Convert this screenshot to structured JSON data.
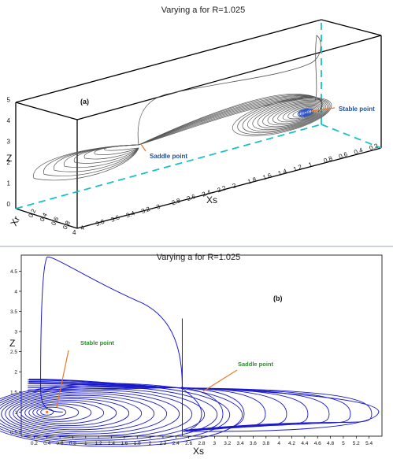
{
  "panel_a": {
    "title": "Varying a for R=1.025",
    "label": "(a)",
    "xlabel": "Xs",
    "ylabel": "Z",
    "depth_label": "Xr",
    "annotations": {
      "saddle": "Saddle point",
      "stable": "Stable point"
    }
  },
  "panel_b": {
    "title": "Varying a for R=1.025",
    "label": "(b)",
    "xlabel": "Xs",
    "ylabel": "Z",
    "annotations": {
      "saddle": "Saddle point",
      "stable": "Stable point"
    }
  },
  "chart_data": [
    {
      "type": "line",
      "projection": "3d",
      "title": "Varying a for R=1.025",
      "xlabel": "Xs",
      "ylabel": "Z",
      "zlabel": "Xr",
      "z_ticks": [
        "0",
        "1",
        "2",
        "3",
        "4",
        "5"
      ],
      "xs_ticks": [
        "0.2",
        "0.4",
        "0.6",
        "0.8",
        "1",
        "1.2",
        "1.4",
        "1.6",
        "1.8",
        "2",
        "2.2",
        "2.4",
        "2.6",
        "2.8",
        "3",
        "3.2",
        "3.4",
        "3.6",
        "3.8",
        "4"
      ],
      "xr_ticks": [
        "0",
        "0.2",
        "0.4",
        "0.6",
        "0.8"
      ],
      "points": [
        {
          "name": "Saddle point",
          "xs": 2.4,
          "z": 1.6
        },
        {
          "name": "Stable point",
          "xs": 0.3,
          "z": 1.0
        }
      ],
      "colors": {
        "trajectories": "#555555",
        "stable_core": "#2f55c8",
        "guides": "#19c1c7",
        "arrows": "#e8792b"
      }
    },
    {
      "type": "line",
      "title": "Varying a for R=1.025",
      "xlabel": "Xs",
      "ylabel": "Z",
      "xlim": [
        0,
        5.6
      ],
      "ylim": [
        0.4,
        4.9
      ],
      "x_ticks": [
        "0.2",
        "0.4",
        "0.6",
        "0.8",
        "1",
        "1.2",
        "1.4",
        "1.6",
        "1.8",
        "2",
        "2.2",
        "2.4",
        "2.6",
        "2.8",
        "3",
        "3.2",
        "3.4",
        "3.6",
        "3.8",
        "4",
        "4.2",
        "4.4",
        "4.6",
        "4.8",
        "5",
        "5.2",
        "5.4"
      ],
      "y_ticks": [
        "0.5",
        "1",
        "1.5",
        "2",
        "2.5",
        "3",
        "3.5",
        "4",
        "4.5"
      ],
      "points": [
        {
          "name": "Saddle point",
          "x": 2.5,
          "y": 1.6
        },
        {
          "name": "Stable point",
          "x": 0.4,
          "y": 1.0
        }
      ],
      "outer_loop_peak": {
        "x": 0.4,
        "y": 4.85
      },
      "colors": {
        "trajectories": "#1a1acc",
        "arrows": "#e8792b"
      }
    }
  ]
}
